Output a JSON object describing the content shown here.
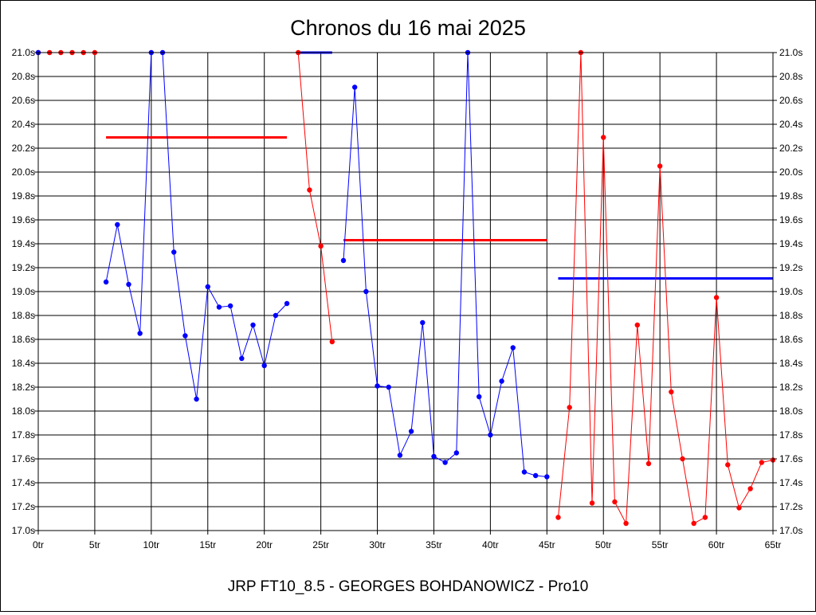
{
  "chart_data": {
    "type": "line",
    "title": "Chronos du 16 mai 2025",
    "subtitle": "JRP FT10_8.5 - GEORGES BOHDANOWICZ - Pro10",
    "xlim": [
      0,
      65
    ],
    "ylim": [
      17.0,
      21.0
    ],
    "x_ticks": [
      0,
      5,
      10,
      15,
      20,
      25,
      30,
      35,
      40,
      45,
      50,
      55,
      60,
      65
    ],
    "x_tick_labels": [
      "0tr",
      "5tr",
      "10tr",
      "15tr",
      "20tr",
      "25tr",
      "30tr",
      "35tr",
      "40tr",
      "45tr",
      "50tr",
      "55tr",
      "60tr",
      "65tr"
    ],
    "y_ticks": [
      17.0,
      17.2,
      17.4,
      17.6,
      17.8,
      18.0,
      18.2,
      18.4,
      18.6,
      18.8,
      19.0,
      19.2,
      19.4,
      19.6,
      19.8,
      20.0,
      20.2,
      20.4,
      20.6,
      20.8,
      21.0
    ],
    "y_tick_labels": [
      "17.0s",
      "17.2s",
      "17.4s",
      "17.6s",
      "17.8s",
      "18.0s",
      "18.2s",
      "18.4s",
      "18.6s",
      "18.8s",
      "19.0s",
      "19.2s",
      "19.4s",
      "19.6s",
      "19.8s",
      "20.0s",
      "20.2s",
      "20.4s",
      "20.6s",
      "20.8s",
      "21.0s"
    ],
    "grid": true,
    "colors": {
      "red": "#ff0000",
      "blue": "#0000ff",
      "red_line": "#cc0000"
    },
    "series": [
      {
        "color": "red",
        "points": [
          [
            0,
            21.0
          ],
          [
            1,
            21.0
          ],
          [
            2,
            21.0
          ],
          [
            3,
            21.0
          ],
          [
            4,
            21.0
          ],
          [
            5,
            21.0
          ]
        ]
      },
      {
        "color": "blue",
        "points": [
          [
            0,
            21.0
          ]
        ]
      },
      {
        "color": "blue",
        "points": [
          [
            6,
            19.08
          ],
          [
            7,
            19.56
          ],
          [
            8,
            19.06
          ],
          [
            9,
            18.65
          ],
          [
            10,
            21.0
          ],
          [
            11,
            21.0
          ],
          [
            12,
            19.33
          ],
          [
            13,
            18.63
          ],
          [
            14,
            18.1
          ],
          [
            15,
            19.04
          ],
          [
            16,
            18.87
          ],
          [
            17,
            18.88
          ],
          [
            18,
            18.44
          ],
          [
            19,
            18.72
          ],
          [
            20,
            18.38
          ],
          [
            21,
            18.8
          ],
          [
            22,
            18.9
          ]
        ]
      },
      {
        "color": "red",
        "points": [
          [
            23,
            21.0
          ],
          [
            24,
            19.85
          ],
          [
            25,
            19.38
          ],
          [
            26,
            18.58
          ]
        ]
      },
      {
        "color": "blue",
        "points": [
          [
            27,
            19.26
          ],
          [
            28,
            20.71
          ],
          [
            29,
            19.0
          ],
          [
            30,
            18.21
          ],
          [
            31,
            18.2
          ],
          [
            32,
            17.63
          ],
          [
            33,
            17.83
          ],
          [
            34,
            18.74
          ],
          [
            35,
            17.62
          ],
          [
            36,
            17.57
          ],
          [
            37,
            17.65
          ],
          [
            38,
            21.0
          ],
          [
            39,
            18.12
          ],
          [
            40,
            17.8
          ],
          [
            41,
            18.25
          ],
          [
            42,
            18.53
          ],
          [
            43,
            17.49
          ],
          [
            44,
            17.46
          ],
          [
            45,
            17.45
          ]
        ]
      },
      {
        "color": "red",
        "points": [
          [
            46,
            17.11
          ],
          [
            47,
            18.03
          ],
          [
            48,
            21.0
          ],
          [
            49,
            17.23
          ],
          [
            50,
            20.29
          ],
          [
            51,
            17.24
          ],
          [
            52,
            17.06
          ],
          [
            53,
            18.72
          ],
          [
            54,
            17.56
          ],
          [
            55,
            20.05
          ],
          [
            56,
            18.16
          ],
          [
            57,
            17.6
          ],
          [
            58,
            17.06
          ],
          [
            59,
            17.11
          ],
          [
            60,
            18.95
          ],
          [
            61,
            17.55
          ],
          [
            62,
            17.19
          ],
          [
            63,
            17.35
          ],
          [
            64,
            17.57
          ],
          [
            65,
            17.59
          ]
        ]
      }
    ],
    "averages": [
      {
        "color": "red",
        "x": [
          6,
          22
        ],
        "y": 20.29
      },
      {
        "color": "blue",
        "x": [
          23,
          26
        ],
        "y": 21.0
      },
      {
        "color": "red",
        "x": [
          27,
          45
        ],
        "y": 19.43
      },
      {
        "color": "blue",
        "x": [
          46,
          65
        ],
        "y": 19.11
      }
    ]
  }
}
